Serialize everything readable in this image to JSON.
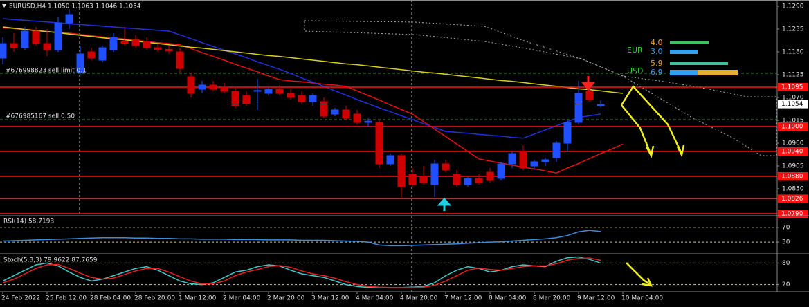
{
  "header": {
    "symbol_info": "EURUSD,H4 1.1050 1.1063 1.1046 1.1054"
  },
  "orders": [
    "#676998823 sell limit 0.1",
    "#676985167 sell 0.50"
  ],
  "currency_strength": [
    {
      "name": "EUR",
      "values": [
        "4.0",
        "3.0"
      ]
    },
    {
      "name": "USD",
      "values": [
        "5.9",
        "6.9"
      ]
    }
  ],
  "chart_data": [
    {
      "type": "candlestick",
      "categories": [
        "24 Feb 2022",
        null,
        null,
        null,
        "25 Feb 12:00",
        null,
        null,
        null,
        "28 Feb 04:00",
        null,
        null,
        null,
        "28 Feb 20:00",
        null,
        null,
        null,
        "1 Mar 12:00",
        null,
        null,
        null,
        "2 Mar 04:00",
        null,
        null,
        null,
        "2 Mar 20:00",
        null,
        null,
        null,
        "3 Mar 12:00",
        null,
        null,
        null,
        "4 Mar 04:00",
        null,
        null,
        null,
        "4 Mar 20:00",
        null,
        null,
        null,
        "7 Mar 12:00",
        null,
        null,
        null,
        "8 Mar 04:00",
        null,
        null,
        null,
        "8 Mar 20:00",
        null,
        null,
        null,
        "9 Mar 12:00",
        null,
        null,
        null,
        "10 Mar 04:00"
      ],
      "open": [
        1.1165,
        1.12,
        1.119,
        1.123,
        1.12,
        1.1185,
        1.125,
        1.113,
        1.118,
        1.116,
        1.1185,
        1.1205,
        1.121,
        1.1205,
        1.119,
        1.1186,
        1.118,
        1.112,
        1.109,
        1.11,
        1.1095,
        1.1085,
        1.1075,
        1.1085,
        1.108,
        1.109,
        1.108,
        1.1075,
        1.106,
        1.106,
        1.103,
        1.104,
        1.103,
        1.101,
        1.101,
        1.091,
        1.093,
        1.0885,
        1.088,
        1.086,
        1.091,
        1.0885,
        1.086,
        1.0875,
        1.089,
        1.0875,
        1.091,
        1.094,
        1.0905,
        1.0915,
        1.0925,
        1.096,
        1.101,
        1.1085,
        1.105,
        null,
        null
      ],
      "high": [
        1.1215,
        1.1225,
        1.124,
        1.124,
        1.1235,
        1.1265,
        1.128,
        1.1195,
        1.119,
        1.1195,
        1.1225,
        1.124,
        1.122,
        1.1215,
        1.12,
        1.1195,
        1.119,
        1.113,
        1.111,
        1.111,
        1.1105,
        1.1095,
        1.1085,
        1.1115,
        1.1095,
        1.11,
        1.109,
        1.1085,
        1.108,
        1.107,
        1.1045,
        1.105,
        1.104,
        1.102,
        1.1015,
        1.0935,
        1.0935,
        1.09,
        1.0905,
        1.092,
        1.092,
        1.0895,
        1.088,
        1.0885,
        1.09,
        1.0915,
        1.094,
        1.0955,
        1.092,
        1.0925,
        1.0965,
        1.1015,
        1.111,
        1.1095,
        1.1063,
        null,
        null
      ],
      "low": [
        1.115,
        1.118,
        1.1185,
        1.1195,
        1.117,
        1.118,
        1.1235,
        1.1125,
        1.116,
        1.1155,
        1.118,
        1.1195,
        1.119,
        1.1185,
        1.118,
        1.1175,
        1.113,
        1.107,
        1.108,
        1.1085,
        1.108,
        1.1045,
        1.105,
        1.104,
        1.1075,
        1.1075,
        1.1065,
        1.1055,
        1.105,
        1.102,
        1.1025,
        1.1015,
        1.1005,
        1.1,
        1.09,
        1.0905,
        1.083,
        1.0855,
        1.086,
        1.083,
        1.089,
        1.0855,
        1.0855,
        1.086,
        1.0865,
        1.087,
        1.09,
        1.0895,
        1.0895,
        1.0905,
        1.0915,
        1.094,
        1.1005,
        1.106,
        1.1046,
        null,
        null
      ],
      "close": [
        1.12,
        1.119,
        1.123,
        1.12,
        1.1185,
        1.125,
        1.127,
        1.1175,
        1.1165,
        1.119,
        1.1215,
        1.12,
        1.1195,
        1.119,
        1.1186,
        1.1182,
        1.114,
        1.108,
        1.11,
        1.109,
        1.1085,
        1.105,
        1.1055,
        1.1087,
        1.109,
        1.108,
        1.107,
        1.106,
        1.1075,
        1.1025,
        1.104,
        1.102,
        1.101,
        1.1013,
        1.091,
        1.093,
        1.0855,
        1.086,
        1.0865,
        1.091,
        1.0895,
        1.086,
        1.0875,
        1.0865,
        1.087,
        1.091,
        1.0935,
        1.09,
        1.0915,
        1.092,
        1.096,
        1.101,
        1.108,
        1.1065,
        1.1054,
        null,
        null
      ],
      "up_color": "#1f4fff",
      "down_color": "#d00000",
      "overlays": [
        {
          "color": "#e81010",
          "values": [
            1.1238,
            1.1236,
            1.1234,
            1.1232,
            1.1229,
            1.1227,
            1.1225,
            1.1222,
            1.1219,
            1.1216,
            1.1214,
            1.1211,
            1.1208,
            1.1205,
            1.1202,
            1.12,
            1.1197,
            1.1188,
            1.1178,
            1.1169,
            1.116,
            1.115,
            1.1141,
            1.1132,
            1.1122,
            1.1113,
            1.111,
            1.1108,
            1.1105,
            1.1102,
            1.11,
            1.1097,
            1.1086,
            1.1075,
            1.1064,
            1.1052,
            1.1041,
            1.103,
            1.1012,
            1.0994,
            1.0976,
            1.0958,
            1.094,
            1.0922,
            1.0917,
            1.0912,
            1.0907,
            1.0902,
            1.0898,
            1.0893,
            1.0888,
            1.09,
            1.0911,
            1.0923,
            1.0935,
            1.0946,
            1.0958
          ]
        },
        {
          "color": "#2030e0",
          "values": [
            1.126,
            1.1258,
            1.1256,
            1.1254,
            1.1252,
            1.125,
            1.1248,
            1.1246,
            1.1244,
            1.1242,
            1.124,
            1.1238,
            1.1236,
            1.1234,
            1.1232,
            1.123,
            1.1221,
            1.1212,
            1.1202,
            1.1193,
            1.1184,
            1.1175,
            1.1166,
            1.1156,
            1.1147,
            1.1138,
            1.1128,
            1.1117,
            1.1107,
            1.1097,
            1.1086,
            1.1076,
            1.1065,
            1.1055,
            1.1045,
            1.1036,
            1.1026,
            1.1017,
            1.1007,
            1.0998,
            1.0988,
            1.0986,
            1.0984,
            1.0981,
            1.0979,
            1.0977,
            1.0974,
            1.0972,
            1.0982,
            1.0992,
            1.1002,
            1.1012,
            1.1022,
            1.1026,
            1.103,
            null,
            null
          ]
        },
        {
          "color": "#d8d020",
          "values": [
            1.124,
            1.1237,
            1.1234,
            1.1231,
            1.1229,
            1.1226,
            1.1223,
            1.122,
            1.1217,
            1.1214,
            1.1211,
            1.1209,
            1.1206,
            1.1203,
            1.12,
            1.1197,
            1.1194,
            1.1191,
            1.1189,
            1.1186,
            1.1183,
            1.118,
            1.1177,
            1.1174,
            1.1171,
            1.1169,
            1.1166,
            1.1163,
            1.116,
            1.1157,
            1.1154,
            1.1151,
            1.1149,
            1.1146,
            1.1143,
            1.114,
            1.1137,
            1.1134,
            1.1131,
            1.1129,
            1.1126,
            1.1123,
            1.112,
            1.1117,
            1.1114,
            1.1111,
            1.1109,
            1.1106,
            1.1103,
            1.11,
            1.1097,
            1.1094,
            1.1091,
            1.1089,
            1.1086,
            1.1083,
            1.108
          ]
        }
      ],
      "ylim": [
        1.0785,
        1.1305
      ],
      "yticks": [
        {
          "value": 1.129,
          "label": "1.1290"
        },
        {
          "value": 1.1235,
          "label": "1.1235"
        },
        {
          "value": 1.118,
          "label": "1.1180"
        },
        {
          "value": 1.1125,
          "label": "1.1125"
        },
        {
          "value": 1.107,
          "label": "1.1070"
        },
        {
          "value": 1.1015,
          "label": "1.1015"
        },
        {
          "value": 1.096,
          "label": "1.0960"
        },
        {
          "value": 1.0905,
          "label": "1.0905"
        },
        {
          "value": 1.085,
          "label": "1.0850"
        }
      ],
      "levels": [
        {
          "value": 1.1095,
          "label": "1.1095"
        },
        {
          "value": 1.1,
          "label": "1.1000"
        },
        {
          "value": 1.094,
          "label": "1.0940"
        },
        {
          "value": 1.088,
          "label": "1.0880"
        },
        {
          "value": 1.0826,
          "label": "1.0826"
        },
        {
          "value": 1.079,
          "label": "1.0790"
        }
      ],
      "level_color": "#ff1010",
      "last_price": {
        "value": 1.1054,
        "label": "1.1054"
      }
    },
    {
      "type": "line",
      "title": "RSI(14) 58.7193",
      "color": "#3c8ce0",
      "values": [
        33,
        34,
        35,
        36,
        37,
        38,
        39,
        40,
        41,
        42,
        42,
        42,
        41,
        41,
        40,
        40,
        39,
        39,
        38,
        38,
        38,
        37,
        37,
        37,
        36,
        36,
        36,
        35,
        35,
        35,
        34,
        33,
        32,
        30,
        22,
        20,
        20,
        21,
        22,
        23,
        24,
        25,
        27,
        28,
        30,
        31,
        33,
        35,
        37,
        39,
        42,
        48,
        58,
        62,
        58.7193,
        null,
        null
      ],
      "ylim": [
        0,
        100
      ],
      "yticks": [
        70,
        30
      ]
    },
    {
      "type": "line",
      "title": "Stoch(5,3,3) 79.9622 87.7659",
      "series": [
        {
          "color": "#40c8c8",
          "values": [
            30,
            45,
            60,
            75,
            80,
            72,
            55,
            40,
            30,
            35,
            45,
            55,
            65,
            70,
            60,
            45,
            30,
            22,
            20,
            25,
            40,
            55,
            60,
            70,
            75,
            72,
            60,
            50,
            45,
            40,
            30,
            20,
            15,
            12,
            12,
            12,
            12,
            13,
            15,
            25,
            45,
            60,
            70,
            65,
            55,
            60,
            70,
            75,
            72,
            70,
            85,
            95,
            97,
            90,
            79.9622,
            null,
            null
          ]
        },
        {
          "color": "#e82020",
          "values": [
            25,
            35,
            50,
            65,
            75,
            76,
            65,
            52,
            40,
            35,
            38,
            48,
            58,
            65,
            65,
            55,
            42,
            30,
            22,
            22,
            30,
            45,
            55,
            62,
            70,
            73,
            68,
            58,
            50,
            45,
            38,
            28,
            20,
            15,
            13,
            12,
            12,
            12,
            13,
            18,
            30,
            45,
            60,
            66,
            62,
            60,
            65,
            70,
            72,
            72,
            78,
            88,
            93,
            94,
            87.7659,
            null,
            null
          ]
        }
      ],
      "ylim": [
        0,
        100
      ],
      "yticks": [
        80,
        20
      ]
    }
  ]
}
